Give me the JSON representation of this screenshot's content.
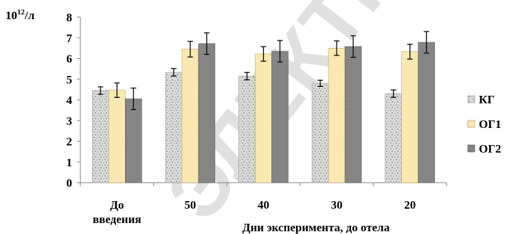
{
  "chart_data": {
    "type": "bar",
    "unit_label": {
      "base": "10",
      "exp": "12",
      "rest": "/л"
    },
    "xlabel": "Дни эксперимента, до отела",
    "categories": [
      [
        "До",
        "введения"
      ],
      [
        "50"
      ],
      [
        "40"
      ],
      [
        "30"
      ],
      [
        "20"
      ]
    ],
    "ylim": [
      0,
      8
    ],
    "yticks": [
      0,
      1,
      2,
      3,
      4,
      5,
      6,
      7,
      8
    ],
    "grid": false,
    "legend_position": "right",
    "series": [
      {
        "name": "КГ",
        "values": [
          4.45,
          5.33,
          5.15,
          4.8,
          4.3
        ],
        "errors": [
          0.18,
          0.18,
          0.18,
          0.15,
          0.18
        ],
        "pattern": "granite"
      },
      {
        "name": "ОГ1",
        "values": [
          4.47,
          6.45,
          6.22,
          6.5,
          6.33
        ],
        "errors": [
          0.35,
          0.38,
          0.35,
          0.35,
          0.36
        ],
        "pattern": "beige"
      },
      {
        "name": "ОГ2",
        "values": [
          4.05,
          6.72,
          6.35,
          6.58,
          6.78
        ],
        "errors": [
          0.52,
          0.52,
          0.52,
          0.52,
          0.52
        ],
        "pattern": "gray"
      }
    ],
    "watermark": "ЭЛЕКТРОННЫЙ"
  },
  "colors": {
    "granite_base": "#d9d9d9",
    "granite_dark": "#8a8a8a",
    "beige_fill": "#fbe9b3",
    "beige_stroke": "#b8a26a",
    "gray_fill": "#858585",
    "gray_stroke": "#5a5a5a",
    "axis": "#7f7f7f"
  }
}
